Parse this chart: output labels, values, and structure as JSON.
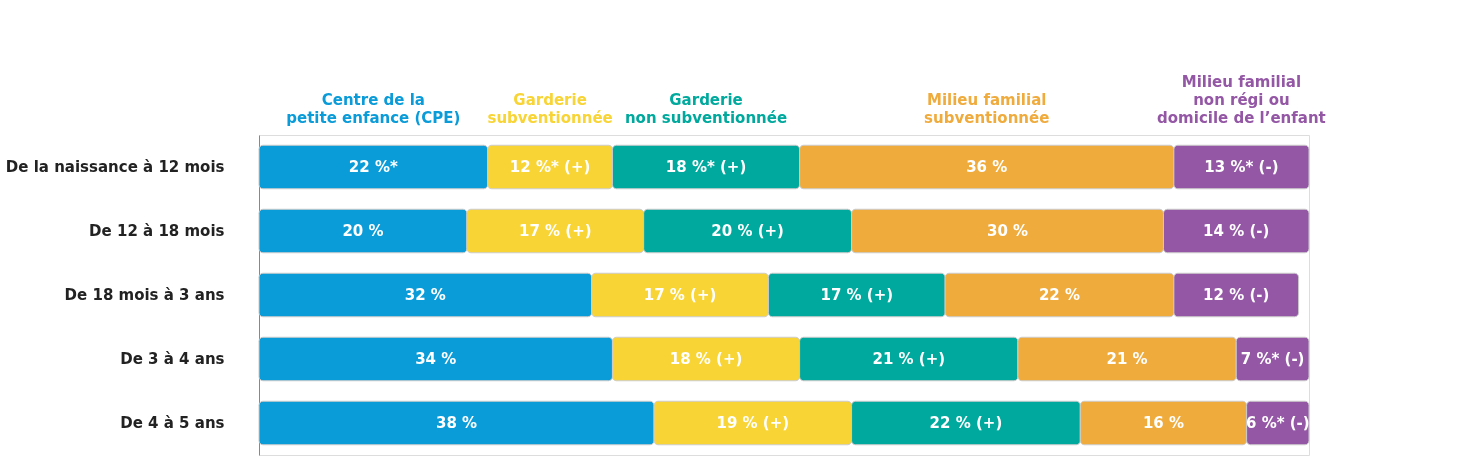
{
  "chart_data": {
    "type": "bar",
    "orientation": "horizontal",
    "stacked": true,
    "legend": "top",
    "categories": [
      "De la naissance à 12 mois",
      "De 12 à 18 mois",
      "De 18 mois à 3 ans",
      "De 3 à 4 ans",
      "De 4 à 5 ans"
    ],
    "series": [
      {
        "name": "Centre de la\npetite enfance (CPE)",
        "color": "#0a9bd9",
        "values": [
          22,
          20,
          32,
          34,
          38
        ],
        "value_labels": [
          "22 %*",
          "20 %",
          "32 %",
          "34 %",
          "38 %"
        ]
      },
      {
        "name": "Garderie\nsubventionnée",
        "color": "#f8d435",
        "values": [
          12,
          17,
          17,
          18,
          19
        ],
        "value_labels": [
          "12 %* (+)",
          "17 % (+)",
          "17 % (+)",
          "18 % (+)",
          "19 % (+)"
        ]
      },
      {
        "name": "Garderie\nnon subventionnée",
        "color": "#00a99d",
        "values": [
          18,
          20,
          17,
          21,
          22
        ],
        "value_labels": [
          "18 %* (+)",
          "20 % (+)",
          "17 % (+)",
          "21 % (+)",
          "22 % (+)"
        ]
      },
      {
        "name": "Milieu familial\nsubventionnée",
        "color": "#f0ab3d",
        "values": [
          36,
          30,
          22,
          21,
          16
        ],
        "value_labels": [
          "36 %",
          "30 %",
          "22 %",
          "21 %",
          "16 %"
        ]
      },
      {
        "name": "Milieu familial\nnon régi ou\ndomicile de l’enfant",
        "color": "#9457a5",
        "values": [
          13,
          14,
          12,
          7,
          6
        ],
        "value_labels": [
          "13 %* (-)",
          "14 % (-)",
          "12 % (-)",
          "7 %* (-)",
          "6 %* (-)"
        ]
      }
    ]
  }
}
